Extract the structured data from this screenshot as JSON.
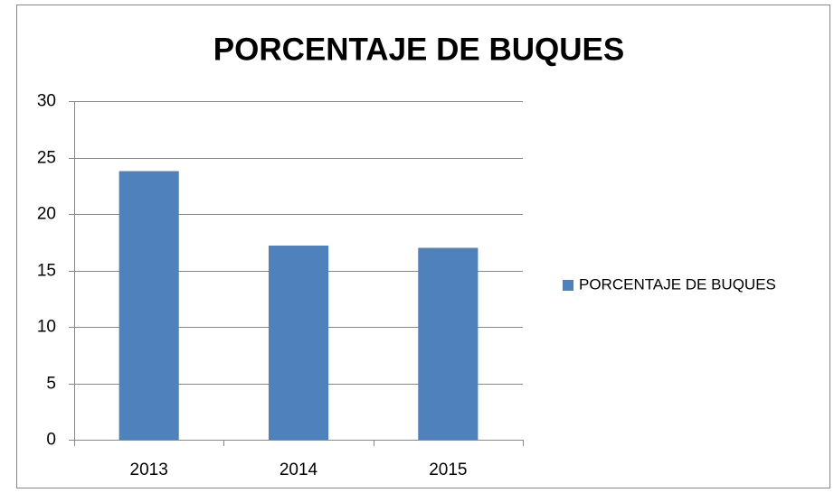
{
  "chart_data": {
    "type": "bar",
    "title": "PORCENTAJE DE BUQUES",
    "categories": [
      "2013",
      "2014",
      "2015"
    ],
    "series": [
      {
        "name": "PORCENTAJE DE BUQUES",
        "color": "#4f81bd",
        "values": [
          23.8,
          17.2,
          17.0
        ]
      }
    ],
    "ylim": [
      0,
      30
    ],
    "yticks": [
      0,
      5,
      10,
      15,
      20,
      25,
      30
    ],
    "grid": true,
    "legend": "right"
  }
}
